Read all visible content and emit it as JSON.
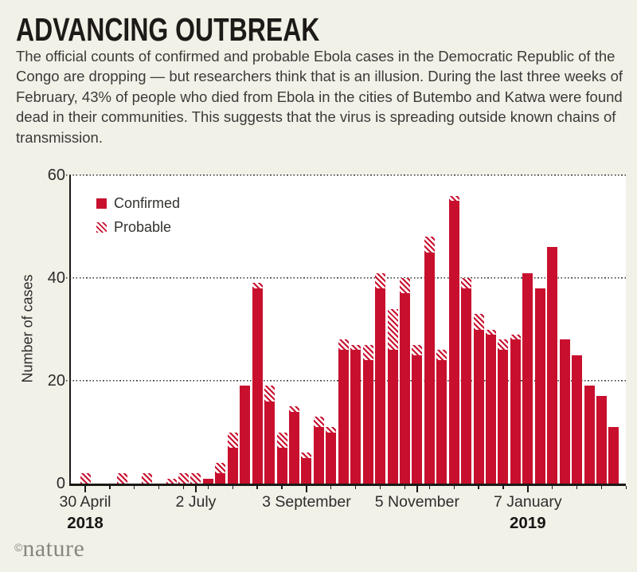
{
  "header": {
    "title": "ADVANCING OUTBREAK",
    "description": "The official counts of confirmed and probable Ebola cases in the Democratic Republic of the Congo are dropping — but researchers think that is an illusion. During the last three weeks of February, 43% of people who died from Ebola in the cities of Butembo and Katwa were found dead in their communities. This suggests that the virus is spreading outside known chains of transmission."
  },
  "brand": {
    "copyright_symbol": "©",
    "logo_text": "nature"
  },
  "chart_data": {
    "type": "bar",
    "stacked": true,
    "title": "",
    "xlabel": "",
    "ylabel": "Number of cases",
    "ylim": [
      0,
      60
    ],
    "yticks": [
      0,
      20,
      40,
      60
    ],
    "ytick_labels": [
      "0",
      "20",
      "40",
      "60"
    ],
    "grid": "horizontal dotted lines at 20, 40, 60",
    "legend_position": "top-left inside plot",
    "legend": [
      {
        "name": "Confirmed",
        "style": "solid",
        "color": "#C8102E"
      },
      {
        "name": "Probable",
        "style": "diagonal-hatch",
        "color": "#C8102E"
      }
    ],
    "x_unit": "epidemiological week (weekly bars, 30 April 2018 to late February 2019)",
    "xtick_labels": [
      {
        "week": 0,
        "label": "30 April",
        "year": "2018"
      },
      {
        "week": 9,
        "label": "2 July"
      },
      {
        "week": 18,
        "label": "3 September"
      },
      {
        "week": 27,
        "label": "5 November"
      },
      {
        "week": 36,
        "label": "7 January",
        "year": "2019"
      }
    ],
    "series": [
      {
        "name": "Confirmed",
        "values": [
          0,
          0,
          0,
          0,
          0,
          0,
          0,
          0,
          0,
          0,
          1,
          2,
          7,
          19,
          38,
          16,
          7,
          14,
          5,
          11,
          10,
          26,
          26,
          24,
          38,
          26,
          37,
          25,
          45,
          24,
          55,
          38,
          30,
          29,
          26,
          28,
          41,
          38,
          46,
          28,
          25,
          19,
          17,
          11
        ]
      },
      {
        "name": "Probable",
        "values": [
          2,
          0,
          0,
          2,
          0,
          2,
          0,
          1,
          2,
          2,
          0,
          2,
          3,
          0,
          1,
          3,
          3,
          1,
          1,
          2,
          1,
          2,
          1,
          3,
          3,
          8,
          3,
          2,
          3,
          2,
          1,
          2,
          3,
          1,
          2,
          1,
          0,
          0,
          0,
          0,
          0,
          0,
          0,
          0
        ]
      }
    ],
    "colors": {
      "confirmed": "#C8102E",
      "probable_hatch": "#C8102E",
      "background": "#F2F1E8",
      "plot_background": "#FFFFFF"
    }
  }
}
